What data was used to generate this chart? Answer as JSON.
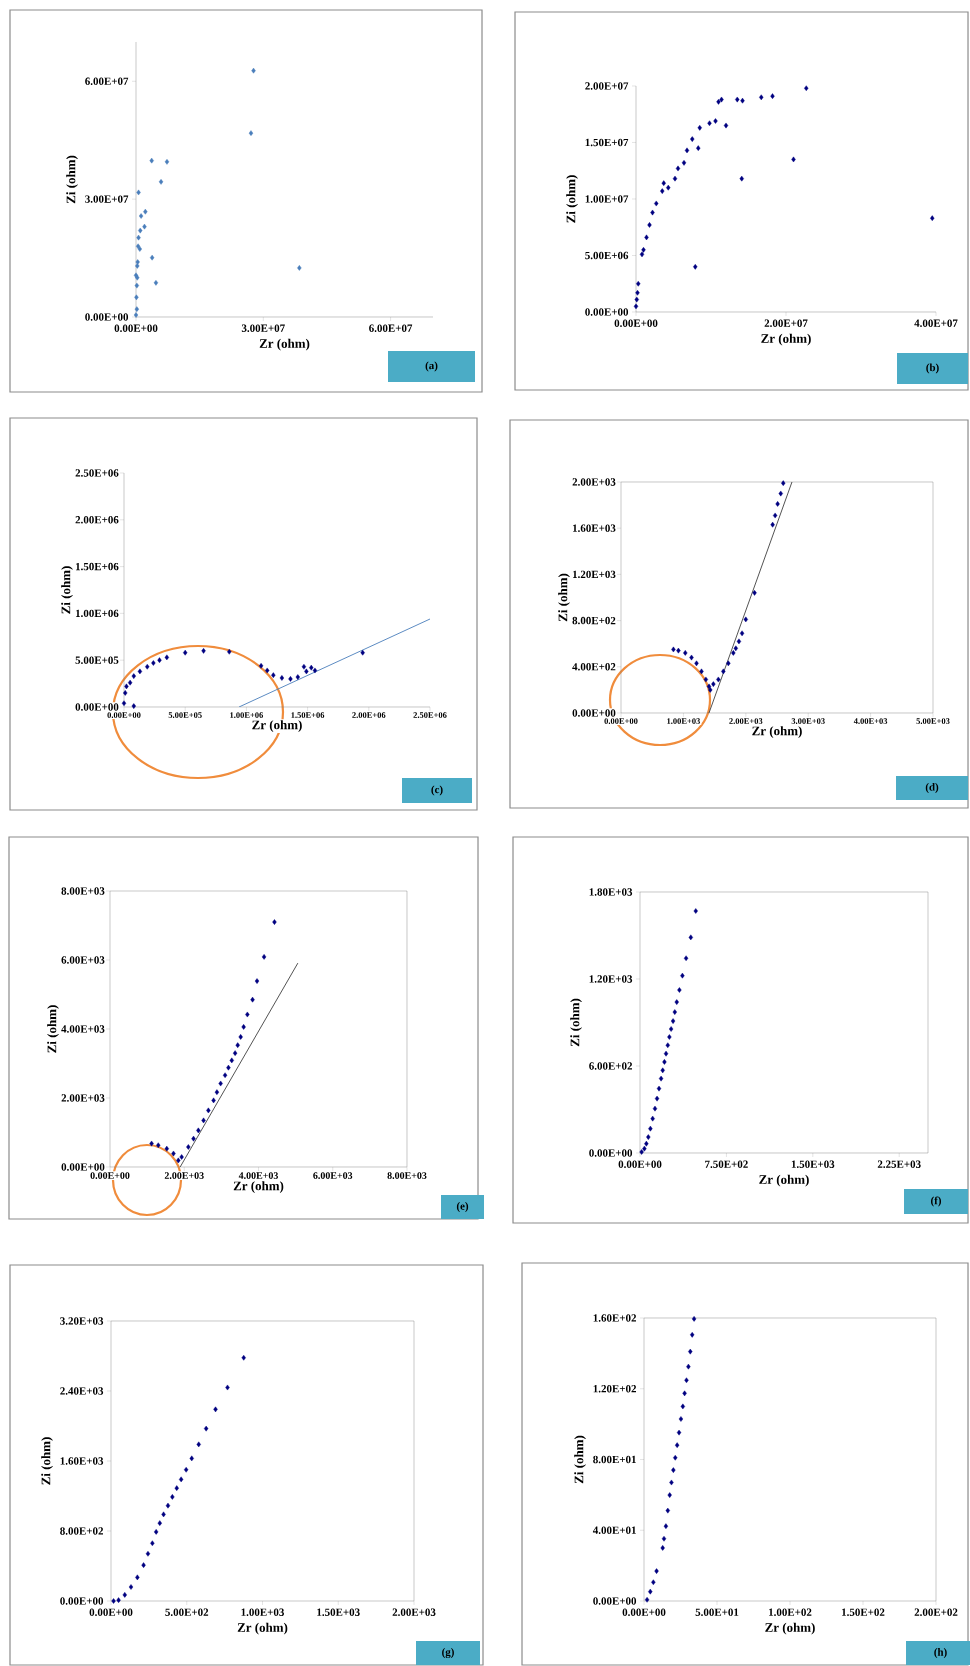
{
  "chart_data": [
    {
      "type": "scatter",
      "xlabel": "Zr (ohm)",
      "ylabel": "Zi (ohm)",
      "annotations": [
        "(a)"
      ],
      "marker": "diamond",
      "xlim": [
        0,
        70000000.0
      ],
      "ylim": [
        0,
        70000000.0
      ],
      "xticks": [
        {
          "value": 0,
          "label": "0.00E+00"
        },
        {
          "value": 30000000.0,
          "label": "3.00E+07"
        },
        {
          "value": 60000000.0,
          "label": "6.00E+07"
        }
      ],
      "yticks": [
        {
          "value": 0,
          "label": "0.00E+00"
        },
        {
          "value": 30000000.0,
          "label": "3.00E+07"
        },
        {
          "value": 60000000.0,
          "label": "6.00E+07"
        }
      ],
      "series": [
        {
          "color": "#4a7ebb",
          "x": [
            27700000.0,
            27100000.0,
            38500000.0,
            7300000.0,
            3700000.0,
            5900000.0,
            2200000.0,
            600000.0,
            2000000.0,
            3800000.0,
            4700000.0,
            1200000.0,
            600000.0,
            900000.0,
            300000.0,
            0.0,
            200000.0,
            100000.0,
            200000.0,
            300000.0,
            400000.0,
            500000.0,
            1000000.0,
            0.0
          ],
          "values": [
            62700000.0,
            46800000.0,
            12500000.0,
            39500000.0,
            39800000.0,
            34400000.0,
            26800000.0,
            31700000.0,
            23000000.0,
            15100000.0,
            8700000.0,
            25700000.0,
            20200000.0,
            17300000.0,
            13000000.0,
            10600000.0,
            2000000.0,
            5000000.0,
            8000000.0,
            10000000.0,
            14000000.0,
            18000000.0,
            22000000.0,
            500000.0
          ]
        }
      ]
    },
    {
      "type": "scatter",
      "xlabel": "Zr (ohm)",
      "ylabel": "Zi (ohm)",
      "annotations": [
        "(b)"
      ],
      "marker": "diamond",
      "xlim": [
        0,
        40000000.0
      ],
      "ylim": [
        0,
        20000000.0
      ],
      "xticks": [
        {
          "value": 0,
          "label": "0.00E+00"
        },
        {
          "value": 20000000.0,
          "label": "2.00E+07"
        },
        {
          "value": 40000000.0,
          "label": "4.00E+07"
        }
      ],
      "yticks": [
        {
          "value": 0,
          "label": "0.00E+00"
        },
        {
          "value": 5000000.0,
          "label": "5.00E+06"
        },
        {
          "value": 10000000.0,
          "label": "1.00E+07"
        },
        {
          "value": 15000000.0,
          "label": "1.50E+07"
        },
        {
          "value": 20000000.0,
          "label": "2.00E+07"
        }
      ],
      "series": [
        {
          "color": "#000080",
          "x": [
            22700000.0,
            18200000.0,
            16700000.0,
            14200000.0,
            13500000.0,
            11400000.0,
            11000000.0,
            12000000.0,
            10600000.0,
            9800000.0,
            8500000.0,
            8300000.0,
            7500000.0,
            6800000.0,
            6400000.0,
            5600000.0,
            5200000.0,
            4300000.0,
            3500000.0,
            3700000.0,
            2700000.0,
            2200000.0,
            1800000.0,
            1400000.0,
            1000000.0,
            800000.0,
            21000000.0,
            14100000.0,
            7900000.0,
            39500000.0,
            300000.0,
            200000.0,
            0.0,
            100000.0
          ],
          "values": [
            19800000.0,
            19100000.0,
            19000000.0,
            18700000.0,
            18800000.0,
            18800000.0,
            18600000.0,
            16500000.0,
            16900000.0,
            16700000.0,
            16300000.0,
            14500000.0,
            15300000.0,
            14300000.0,
            13200000.0,
            12700000.0,
            11800000.0,
            11000000.0,
            10700000.0,
            11400000.0,
            9600000.0,
            8800000.0,
            7700000.0,
            6600000.0,
            5500000.0,
            5100000.0,
            13500000.0,
            11800000.0,
            4000000.0,
            8300000.0,
            2500000.0,
            1700000.0,
            500000.0,
            1100000.0
          ]
        }
      ]
    },
    {
      "type": "scatter",
      "xlabel": "Zr (ohm)",
      "ylabel": "Zi (ohm)",
      "annotations": [
        "(c)"
      ],
      "xlim": [
        0,
        2500000.0
      ],
      "ylim": [
        0,
        2500000.0
      ],
      "xticks": [
        {
          "value": 0,
          "label": "0.00E+00"
        },
        {
          "value": 500000.0,
          "label": "5.00E+05"
        },
        {
          "value": 1000000.0,
          "label": "1.00E+06"
        },
        {
          "value": 1500000.0,
          "label": "1.50E+06"
        },
        {
          "value": 2000000.0,
          "label": "2.00E+06"
        },
        {
          "value": 2500000.0,
          "label": "2.50E+06"
        }
      ],
      "yticks": [
        {
          "value": 0,
          "label": "0.00E+00"
        },
        {
          "value": 500000.0,
          "label": "5.00E+05"
        },
        {
          "value": 1000000.0,
          "label": "1.00E+06"
        },
        {
          "value": 1500000.0,
          "label": "1.50E+06"
        },
        {
          "value": 2000000.0,
          "label": "2.00E+06"
        },
        {
          "value": 2500000.0,
          "label": "2.50E+06"
        }
      ],
      "series": [
        {
          "color": "#000080",
          "marker": "diamond",
          "x": [
            0,
            10000.0,
            20000.0,
            50000.0,
            80000.0,
            130000.0,
            190000.0,
            240000.0,
            290000.0,
            350000.0,
            500000.0,
            650000.0,
            860000.0,
            1120000.0,
            1170000.0,
            1220000.0,
            1290000.0,
            1360000.0,
            1420000.0,
            1470000.0,
            1490000.0,
            1530000.0,
            1560000.0,
            1950000.0,
            80000.0
          ],
          "values": [
            40000.0,
            150000.0,
            220000.0,
            260000.0,
            330000.0,
            380000.0,
            430000.0,
            470000.0,
            500000.0,
            530000.0,
            580000.0,
            600000.0,
            590000.0,
            440000.0,
            390000.0,
            340000.0,
            310000.0,
            300000.0,
            320000.0,
            430000.0,
            380000.0,
            420000.0,
            390000.0,
            580000.0,
            10000.0
          ]
        },
        {
          "type": "line",
          "marker": "none",
          "color": "#4a7ebb",
          "x": [
            940000.0,
            2500000.0
          ],
          "values": [
            0,
            940000.0
          ]
        }
      ]
    },
    {
      "type": "scatter",
      "xlabel": "Zr (ohm)",
      "ylabel": "Zi (ohm)",
      "annotations": [
        "(d)"
      ],
      "xlim": [
        0,
        5000
      ],
      "ylim": [
        0,
        2000
      ],
      "xticks": [
        {
          "value": 0,
          "label": "0.00E+00"
        },
        {
          "value": 1000,
          "label": "1.00E+03"
        },
        {
          "value": 2000,
          "label": "2.00E+03"
        },
        {
          "value": 3000,
          "label": "3.00E+03"
        },
        {
          "value": 4000,
          "label": "4.00E+03"
        },
        {
          "value": 5000,
          "label": "5.00E+03"
        }
      ],
      "yticks": [
        {
          "value": 0,
          "label": "0.00E+00"
        },
        {
          "value": 400,
          "label": "4.00E+02"
        },
        {
          "value": 800,
          "label": "8.00E+02"
        },
        {
          "value": 1200,
          "label": "1.20E+03"
        },
        {
          "value": 1600,
          "label": "1.60E+03"
        },
        {
          "value": 2000,
          "label": "2.00E+03"
        }
      ],
      "series": [
        {
          "color": "#000080",
          "marker": "diamond",
          "x": [
            840,
            920,
            1030,
            1130,
            1210,
            1290,
            1360,
            1410,
            1430,
            1480,
            1560,
            1640,
            1720,
            1800,
            1840,
            1890,
            1940,
            2000,
            2140,
            2430,
            2470,
            2510,
            2560,
            2600
          ],
          "values": [
            550,
            540,
            520,
            480,
            430,
            360,
            290,
            230,
            200,
            250,
            290,
            360,
            430,
            520,
            560,
            620,
            690,
            810,
            1040,
            1630,
            1710,
            1810,
            1900,
            1990
          ]
        },
        {
          "type": "line",
          "marker": "none",
          "color": "#404040",
          "x": [
            1410,
            2740
          ],
          "values": [
            0,
            2000
          ]
        }
      ]
    },
    {
      "type": "scatter",
      "xlabel": "Zr (ohm)",
      "ylabel": "Zi (ohm)",
      "annotations": [
        "(e)"
      ],
      "xlim": [
        0,
        8000
      ],
      "ylim": [
        0,
        8000
      ],
      "xticks": [
        {
          "value": 0,
          "label": "0.00E+00"
        },
        {
          "value": 2000,
          "label": "2.00E+03"
        },
        {
          "value": 4000,
          "label": "4.00E+03"
        },
        {
          "value": 6000,
          "label": "6.00E+03"
        },
        {
          "value": 8000,
          "label": "8.00E+03"
        }
      ],
      "yticks": [
        {
          "value": 0,
          "label": "0.00E+00"
        },
        {
          "value": 2000,
          "label": "2.00E+03"
        },
        {
          "value": 4000,
          "label": "4.00E+03"
        },
        {
          "value": 6000,
          "label": "6.00E+03"
        },
        {
          "value": 8000,
          "label": "8.00E+03"
        }
      ],
      "series": [
        {
          "color": "#000080",
          "marker": "diamond",
          "x": [
            4430,
            4150,
            3960,
            3840,
            3700,
            3600,
            3520,
            3440,
            3370,
            3280,
            3190,
            3100,
            2980,
            2880,
            2790,
            2650,
            2520,
            2380,
            2250,
            2110,
            1930,
            1840,
            1710,
            1530,
            1300,
            1120
          ],
          "values": [
            7100,
            6090,
            5390,
            4850,
            4420,
            4060,
            3770,
            3530,
            3300,
            3090,
            2880,
            2660,
            2420,
            2170,
            1930,
            1640,
            1350,
            1060,
            820,
            580,
            290,
            190,
            390,
            530,
            630,
            680
          ]
        },
        {
          "type": "line",
          "marker": "none",
          "color": "#404040",
          "x": [
            1890,
            5060
          ],
          "values": [
            0,
            5910
          ]
        }
      ]
    },
    {
      "type": "scatter",
      "xlabel": "Zr (ohm)",
      "ylabel": "Zi (ohm)",
      "annotations": [
        "(f)"
      ],
      "marker": "diamond",
      "xlim": [
        0,
        2500
      ],
      "ylim": [
        0,
        1800
      ],
      "xticks": [
        {
          "value": 0,
          "label": "0.00E+00"
        },
        {
          "value": 750,
          "label": "7.50E+02"
        },
        {
          "value": 1500,
          "label": "1.50E+03"
        },
        {
          "value": 2250,
          "label": "2.25E+03"
        }
      ],
      "yticks": [
        {
          "value": 0,
          "label": "0.00E+00"
        },
        {
          "value": 600,
          "label": "6.00E+02"
        },
        {
          "value": 1200,
          "label": "1.20E+03"
        },
        {
          "value": 1800,
          "label": "1.80E+03"
        }
      ],
      "series": [
        {
          "color": "#000080",
          "x": [
            484,
            441,
            400,
            368,
            342,
            319,
            302,
            287,
            270,
            255,
            241,
            226,
            212,
            197,
            183,
            165,
            148,
            130,
            110,
            90,
            72,
            55,
            38,
            14
          ],
          "values": [
            1669,
            1487,
            1343,
            1223,
            1124,
            1041,
            972,
            910,
            855,
            800,
            743,
            685,
            628,
            570,
            513,
            444,
            375,
            306,
            237,
            168,
            110,
            64,
            30,
            7
          ]
        }
      ]
    },
    {
      "type": "scatter",
      "xlabel": "Zr (ohm)",
      "ylabel": "Zi (ohm)",
      "annotations": [
        "(g)"
      ],
      "marker": "diamond",
      "xlim": [
        0,
        2000
      ],
      "ylim": [
        0,
        3200
      ],
      "xticks": [
        {
          "value": 0,
          "label": "0.00E+00"
        },
        {
          "value": 500,
          "label": "5.00E+02"
        },
        {
          "value": 1000,
          "label": "1.00E+03"
        },
        {
          "value": 1500,
          "label": "1.50E+03"
        },
        {
          "value": 2000,
          "label": "2.00E+03"
        }
      ],
      "yticks": [
        {
          "value": 0,
          "label": "0.00E+00"
        },
        {
          "value": 800,
          "label": "8.00E+02"
        },
        {
          "value": 1600,
          "label": "1.60E+03"
        },
        {
          "value": 2400,
          "label": "2.40E+03"
        },
        {
          "value": 3200,
          "label": "3.20E+03"
        }
      ],
      "series": [
        {
          "color": "#000080",
          "x": [
            876,
            769,
            690,
            628,
            579,
            533,
            496,
            463,
            434,
            405,
            376,
            347,
            322,
            298,
            273,
            244,
            215,
            174,
            132,
            91,
            50,
            17
          ],
          "values": [
            2780,
            2440,
            2190,
            1970,
            1790,
            1630,
            1500,
            1390,
            1290,
            1190,
            1090,
            990,
            890,
            790,
            660,
            540,
            410,
            270,
            160,
            70,
            10,
            0
          ]
        }
      ]
    },
    {
      "type": "scatter",
      "xlabel": "Zr (ohm)",
      "ylabel": "Zi (ohm)",
      "annotations": [
        "(h)"
      ],
      "marker": "diamond",
      "xlim": [
        0,
        200
      ],
      "ylim": [
        0,
        160
      ],
      "xticks": [
        {
          "value": 0,
          "label": "0.00E+00"
        },
        {
          "value": 50,
          "label": "5.00E+01"
        },
        {
          "value": 100,
          "label": "1.00E+02"
        },
        {
          "value": 150,
          "label": "1.50E+02"
        },
        {
          "value": 200,
          "label": "2.00E+02"
        }
      ],
      "yticks": [
        {
          "value": 0,
          "label": "0.00E+00"
        },
        {
          "value": 40,
          "label": "4.00E+01"
        },
        {
          "value": 80,
          "label": "8.00E+01"
        },
        {
          "value": 120,
          "label": "1.20E+02"
        },
        {
          "value": 160,
          "label": "1.60E+02"
        }
      ],
      "series": [
        {
          "color": "#000080",
          "x": [
            34.3,
            33,
            31.7,
            30.4,
            29.1,
            27.8,
            26.6,
            25.3,
            24,
            22.7,
            21.4,
            20.1,
            18.8,
            17.6,
            16.3,
            15,
            13.7,
            12.8,
            8.6,
            6.4,
            4.3,
            2.1
          ],
          "values": [
            159.5,
            150.5,
            141,
            132.5,
            124.8,
            117.4,
            110,
            102.9,
            95.2,
            88.1,
            81,
            74,
            67,
            59.9,
            51.1,
            42.3,
            35.2,
            30,
            16.9,
            10.6,
            5.3,
            0.7
          ]
        }
      ]
    }
  ]
}
